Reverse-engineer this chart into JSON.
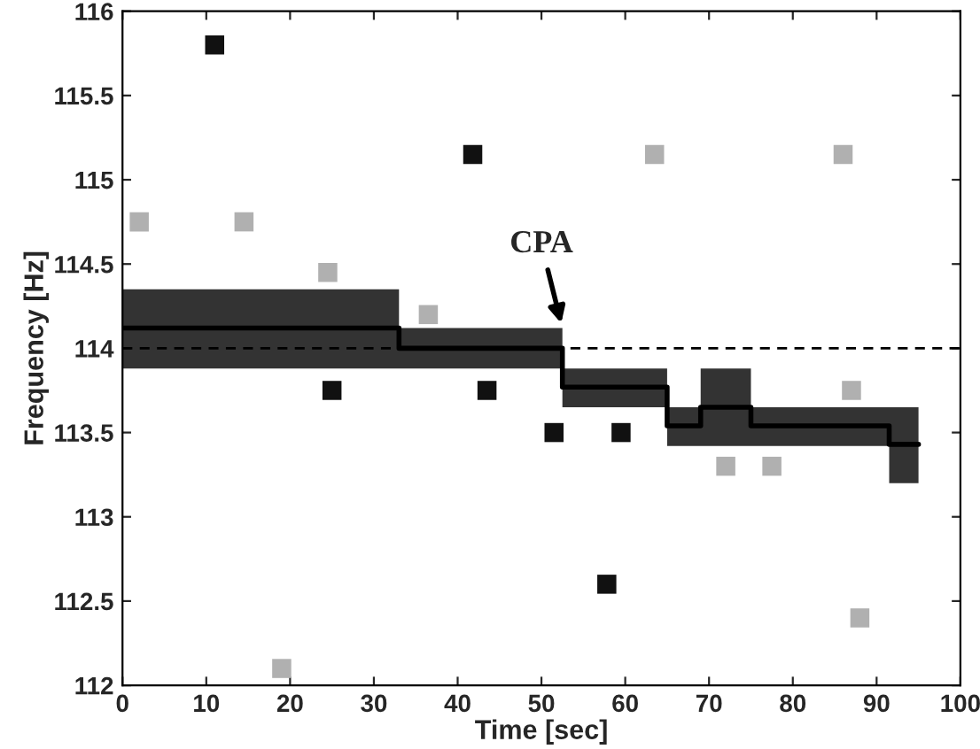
{
  "chart_data": {
    "type": "step",
    "xlabel": "Time [sec]",
    "ylabel": "Frequency [Hz]",
    "xlim": [
      0,
      100
    ],
    "xticks": [
      0,
      10,
      20,
      30,
      40,
      50,
      60,
      70,
      80,
      90,
      100
    ],
    "ylim": [
      112,
      116
    ],
    "yticks": [
      112,
      112.5,
      113,
      113.5,
      114,
      114.5,
      115,
      115.5,
      116
    ],
    "grid": false,
    "legend": false,
    "series": [
      {
        "color": "#000000",
        "x": [
          0,
          33,
          52.5,
          65,
          69,
          75,
          91.5,
          95
        ],
        "values": [
          114.12,
          114.0,
          113.77,
          113.54,
          113.65,
          113.54,
          113.43,
          113.43
        ],
        "lower": [
          113.88,
          113.88,
          113.65,
          113.42,
          113.42,
          113.42,
          113.2,
          113.2
        ],
        "upper": [
          114.35,
          114.12,
          113.88,
          113.65,
          113.88,
          113.65,
          113.65,
          113.65
        ]
      },
      {
        "type": "scatter",
        "color": "#111111",
        "marker": "square",
        "x": [
          11,
          41.8,
          57.8,
          25,
          51.5,
          59.5,
          43.5
        ],
        "values": [
          115.8,
          115.15,
          112.6,
          113.75,
          113.5,
          113.5,
          113.75
        ]
      },
      {
        "type": "scatter",
        "color": "#b0b0b0",
        "marker": "square",
        "x": [
          2,
          14.5,
          24.5,
          36.5,
          88,
          86,
          63.5,
          19,
          87,
          72,
          77.5
        ],
        "values": [
          114.75,
          114.75,
          114.45,
          114.2,
          112.4,
          115.15,
          115.15,
          112.1,
          113.75,
          113.3,
          113.3
        ]
      }
    ],
    "ref_lines": [
      {
        "axis": "y",
        "value": 114,
        "color": "#000000",
        "line_style": "dashed"
      }
    ],
    "annotations": [
      {
        "text": "CPA",
        "x": 52.5,
        "y": 114.12
      }
    ]
  }
}
